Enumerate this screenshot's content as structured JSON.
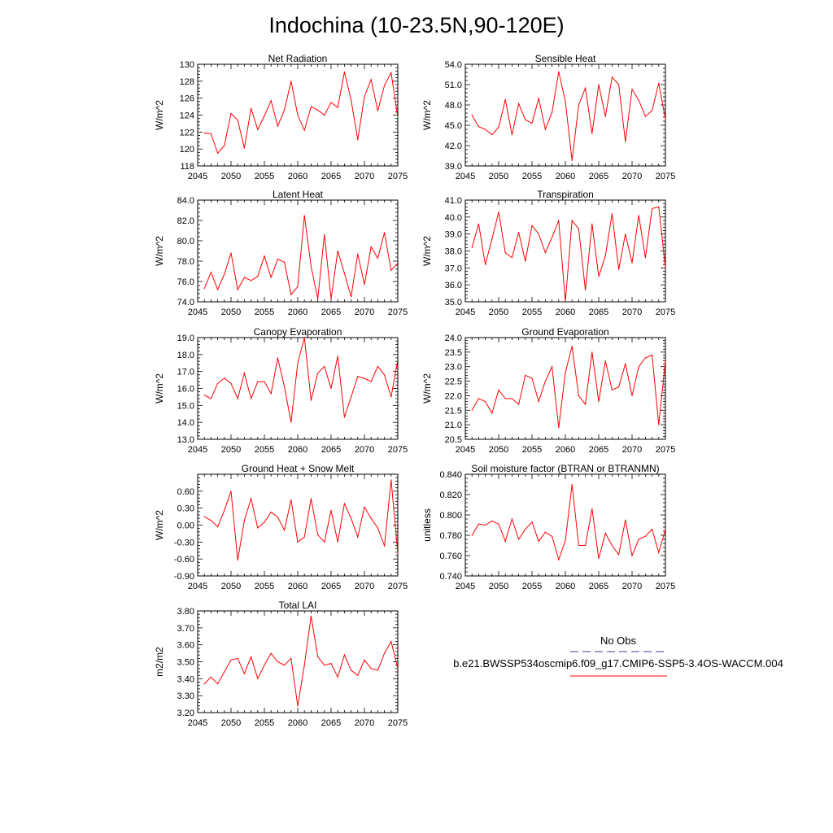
{
  "figure": {
    "title": "Indochina (10-23.5N,90-120E)",
    "legend": {
      "obs_label": "No Obs",
      "obs_color": "#3c3c8c",
      "model_label": "b.e21.BWSSP534oscmip6.f09_g17.CMIP6-SSP5-3.4OS-WACCM.004",
      "model_color": "#ff0000"
    }
  },
  "chart_data": [
    {
      "type": "line",
      "title": "Net Radiation",
      "ylabel": "W/m^2",
      "xlim": [
        2045,
        2075
      ],
      "ylim": [
        118,
        130
      ],
      "xticks": [
        "2045",
        "2050",
        "2055",
        "2060",
        "2065",
        "2070",
        "2075"
      ],
      "yticks": [
        "118",
        "120",
        "122",
        "124",
        "126",
        "128",
        "130"
      ],
      "x": [
        2046,
        2047,
        2048,
        2049,
        2050,
        2051,
        2052,
        2053,
        2054,
        2055,
        2056,
        2057,
        2058,
        2059,
        2060,
        2061,
        2062,
        2063,
        2064,
        2065,
        2066,
        2067,
        2068,
        2069,
        2070,
        2071,
        2072,
        2073,
        2074,
        2075
      ],
      "series": [
        {
          "color": "#ff0000",
          "values": [
            121.9,
            121.8,
            119.5,
            120.4,
            124.2,
            123.4,
            120.1,
            124.8,
            122.3,
            123.9,
            125.7,
            122.7,
            124.6,
            128.0,
            124.0,
            122.2,
            125.0,
            124.6,
            124.0,
            125.5,
            124.9,
            129.1,
            125.8,
            121.1,
            126.2,
            128.2,
            124.5,
            127.5,
            129.0,
            123.7
          ]
        }
      ]
    },
    {
      "type": "line",
      "title": "Sensible Heat",
      "ylabel": "W/m^2",
      "xlim": [
        2045,
        2075
      ],
      "ylim": [
        39.0,
        54.0
      ],
      "xticks": [
        "2045",
        "2050",
        "2055",
        "2060",
        "2065",
        "2070",
        "2075"
      ],
      "yticks": [
        "39.0",
        "42.0",
        "45.0",
        "48.0",
        "51.0",
        "54.0"
      ],
      "x": [
        2046,
        2047,
        2048,
        2049,
        2050,
        2051,
        2052,
        2053,
        2054,
        2055,
        2056,
        2057,
        2058,
        2059,
        2060,
        2061,
        2062,
        2063,
        2064,
        2065,
        2066,
        2067,
        2068,
        2069,
        2070,
        2071,
        2072,
        2073,
        2074,
        2075
      ],
      "series": [
        {
          "color": "#ff0000",
          "values": [
            46.5,
            44.8,
            44.4,
            43.6,
            44.7,
            48.8,
            43.6,
            48.2,
            45.8,
            45.3,
            49.0,
            44.4,
            46.9,
            52.9,
            48.5,
            39.8,
            48.0,
            50.5,
            43.8,
            51.0,
            46.3,
            52.1,
            51.0,
            42.6,
            50.3,
            48.7,
            46.3,
            47.2,
            51.2,
            45.9
          ]
        }
      ]
    },
    {
      "type": "line",
      "title": "Latent Heat",
      "ylabel": "W/m^2",
      "xlim": [
        2045,
        2075
      ],
      "ylim": [
        74.0,
        84.0
      ],
      "xticks": [
        "2045",
        "2050",
        "2055",
        "2060",
        "2065",
        "2070",
        "2075"
      ],
      "yticks": [
        "74.0",
        "76.0",
        "78.0",
        "80.0",
        "82.0",
        "84.0"
      ],
      "x": [
        2046,
        2047,
        2048,
        2049,
        2050,
        2051,
        2052,
        2053,
        2054,
        2055,
        2056,
        2057,
        2058,
        2059,
        2060,
        2061,
        2062,
        2063,
        2064,
        2065,
        2066,
        2067,
        2068,
        2069,
        2070,
        2071,
        2072,
        2073,
        2074,
        2075
      ],
      "series": [
        {
          "color": "#ff0000",
          "values": [
            75.3,
            76.9,
            75.2,
            76.7,
            78.8,
            75.2,
            76.4,
            76.1,
            76.5,
            78.5,
            76.4,
            78.2,
            77.9,
            74.7,
            75.5,
            82.5,
            77.5,
            74.3,
            80.6,
            74.3,
            79.0,
            76.8,
            74.5,
            78.7,
            75.7,
            79.4,
            78.3,
            80.8,
            77.1,
            77.8
          ]
        }
      ]
    },
    {
      "type": "line",
      "title": "Transpiration",
      "ylabel": "W/m^2",
      "xlim": [
        2045,
        2075
      ],
      "ylim": [
        35.0,
        41.0
      ],
      "xticks": [
        "2045",
        "2050",
        "2055",
        "2060",
        "2065",
        "2070",
        "2075"
      ],
      "yticks": [
        "35.0",
        "36.0",
        "37.0",
        "38.0",
        "39.0",
        "40.0",
        "41.0"
      ],
      "x": [
        2046,
        2047,
        2048,
        2049,
        2050,
        2051,
        2052,
        2053,
        2054,
        2055,
        2056,
        2057,
        2058,
        2059,
        2060,
        2061,
        2062,
        2063,
        2064,
        2065,
        2066,
        2067,
        2068,
        2069,
        2070,
        2071,
        2072,
        2073,
        2074,
        2075
      ],
      "series": [
        {
          "color": "#ff0000",
          "values": [
            38.2,
            39.6,
            37.2,
            38.7,
            40.3,
            37.9,
            37.6,
            39.1,
            37.4,
            39.5,
            39.0,
            37.9,
            38.8,
            39.8,
            35.0,
            39.8,
            39.3,
            35.7,
            39.6,
            36.5,
            37.7,
            40.2,
            36.9,
            39.0,
            37.3,
            40.1,
            37.6,
            40.5,
            40.6,
            37.0
          ]
        }
      ]
    },
    {
      "type": "line",
      "title": "Canopy Evaporation",
      "ylabel": "W/m^2",
      "xlim": [
        2045,
        2075
      ],
      "ylim": [
        13.0,
        19.0
      ],
      "xticks": [
        "2045",
        "2050",
        "2055",
        "2060",
        "2065",
        "2070",
        "2075"
      ],
      "yticks": [
        "13.0",
        "14.0",
        "15.0",
        "16.0",
        "17.0",
        "18.0",
        "19.0"
      ],
      "x": [
        2046,
        2047,
        2048,
        2049,
        2050,
        2051,
        2052,
        2053,
        2054,
        2055,
        2056,
        2057,
        2058,
        2059,
        2060,
        2061,
        2062,
        2063,
        2064,
        2065,
        2066,
        2067,
        2068,
        2069,
        2070,
        2071,
        2072,
        2073,
        2074,
        2075
      ],
      "series": [
        {
          "color": "#ff0000",
          "values": [
            15.6,
            15.4,
            16.3,
            16.6,
            16.3,
            15.4,
            16.9,
            15.4,
            16.4,
            16.4,
            15.7,
            17.8,
            16.1,
            14.0,
            17.5,
            19.0,
            15.3,
            16.9,
            17.3,
            16.0,
            17.9,
            14.3,
            15.5,
            16.7,
            16.6,
            16.4,
            17.3,
            16.8,
            15.5,
            17.7
          ]
        }
      ]
    },
    {
      "type": "line",
      "title": "Ground Evaporation",
      "ylabel": "W/m^2",
      "xlim": [
        2045,
        2075
      ],
      "ylim": [
        20.5,
        24.0
      ],
      "xticks": [
        "2045",
        "2050",
        "2055",
        "2060",
        "2065",
        "2070",
        "2075"
      ],
      "yticks": [
        "20.5",
        "21.0",
        "21.5",
        "22.0",
        "22.5",
        "23.0",
        "23.5",
        "24.0"
      ],
      "x": [
        2046,
        2047,
        2048,
        2049,
        2050,
        2051,
        2052,
        2053,
        2054,
        2055,
        2056,
        2057,
        2058,
        2059,
        2060,
        2061,
        2062,
        2063,
        2064,
        2065,
        2066,
        2067,
        2068,
        2069,
        2070,
        2071,
        2072,
        2073,
        2074,
        2075
      ],
      "series": [
        {
          "color": "#ff0000",
          "values": [
            21.5,
            21.9,
            21.8,
            21.4,
            22.2,
            21.9,
            21.9,
            21.7,
            22.7,
            22.6,
            21.8,
            22.5,
            23.0,
            20.9,
            22.8,
            23.7,
            22.0,
            21.7,
            23.5,
            21.8,
            23.2,
            22.2,
            22.3,
            23.1,
            22.0,
            23.0,
            23.3,
            23.4,
            21.0,
            23.2
          ]
        }
      ]
    },
    {
      "type": "line",
      "title": "Ground Heat + Snow Melt",
      "ylabel": "W/m^2",
      "xlim": [
        2045,
        2075
      ],
      "ylim": [
        -0.9,
        0.9
      ],
      "xticks": [
        "2045",
        "2050",
        "2055",
        "2060",
        "2065",
        "2070",
        "2075"
      ],
      "yticks": [
        "-0.90",
        "-0.60",
        "-0.30",
        "0.00",
        "0.30",
        "0.60"
      ],
      "x": [
        2046,
        2047,
        2048,
        2049,
        2050,
        2051,
        2052,
        2053,
        2054,
        2055,
        2056,
        2057,
        2058,
        2059,
        2060,
        2061,
        2062,
        2063,
        2064,
        2065,
        2066,
        2067,
        2068,
        2069,
        2070,
        2071,
        2072,
        2073,
        2074,
        2075
      ],
      "series": [
        {
          "color": "#ff0000",
          "values": [
            0.15,
            0.08,
            -0.03,
            0.26,
            0.6,
            -0.62,
            0.08,
            0.47,
            -0.05,
            0.05,
            0.23,
            0.14,
            -0.09,
            0.45,
            -0.3,
            -0.21,
            0.47,
            -0.17,
            -0.3,
            0.26,
            -0.3,
            0.38,
            0.12,
            -0.21,
            0.32,
            0.12,
            -0.05,
            -0.37,
            0.8,
            -0.5
          ]
        }
      ]
    },
    {
      "type": "line",
      "title": "Soil moisture factor (BTRAN or BTRANMN)",
      "ylabel": "unitless",
      "xlim": [
        2045,
        2075
      ],
      "ylim": [
        0.74,
        0.84
      ],
      "xticks": [
        "2045",
        "2050",
        "2055",
        "2060",
        "2065",
        "2070",
        "2075"
      ],
      "yticks": [
        "0.740",
        "0.760",
        "0.780",
        "0.800",
        "0.820",
        "0.840"
      ],
      "x": [
        2046,
        2047,
        2048,
        2049,
        2050,
        2051,
        2052,
        2053,
        2054,
        2055,
        2056,
        2057,
        2058,
        2059,
        2060,
        2061,
        2062,
        2063,
        2064,
        2065,
        2066,
        2067,
        2068,
        2069,
        2070,
        2071,
        2072,
        2073,
        2074,
        2075
      ],
      "series": [
        {
          "color": "#ff0000",
          "values": [
            0.78,
            0.791,
            0.79,
            0.794,
            0.791,
            0.774,
            0.796,
            0.776,
            0.786,
            0.793,
            0.774,
            0.783,
            0.779,
            0.756,
            0.775,
            0.83,
            0.77,
            0.77,
            0.806,
            0.757,
            0.782,
            0.77,
            0.761,
            0.795,
            0.76,
            0.776,
            0.779,
            0.786,
            0.763,
            0.786
          ]
        }
      ]
    },
    {
      "type": "line",
      "title": "Total LAI",
      "ylabel": "m2/m2",
      "xlim": [
        2045,
        2075
      ],
      "ylim": [
        3.2,
        3.8
      ],
      "xticks": [
        "2045",
        "2050",
        "2055",
        "2060",
        "2065",
        "2070",
        "2075"
      ],
      "yticks": [
        "3.20",
        "3.30",
        "3.40",
        "3.50",
        "3.60",
        "3.70",
        "3.80"
      ],
      "x": [
        2046,
        2047,
        2048,
        2049,
        2050,
        2051,
        2052,
        2053,
        2054,
        2055,
        2056,
        2057,
        2058,
        2059,
        2060,
        2061,
        2062,
        2063,
        2064,
        2065,
        2066,
        2067,
        2068,
        2069,
        2070,
        2071,
        2072,
        2073,
        2074,
        2075
      ],
      "series": [
        {
          "color": "#ff0000",
          "values": [
            3.37,
            3.41,
            3.37,
            3.44,
            3.51,
            3.52,
            3.43,
            3.53,
            3.4,
            3.48,
            3.55,
            3.5,
            3.48,
            3.52,
            3.24,
            3.48,
            3.77,
            3.53,
            3.48,
            3.49,
            3.41,
            3.54,
            3.45,
            3.42,
            3.51,
            3.46,
            3.45,
            3.55,
            3.62,
            3.46
          ]
        }
      ]
    }
  ]
}
